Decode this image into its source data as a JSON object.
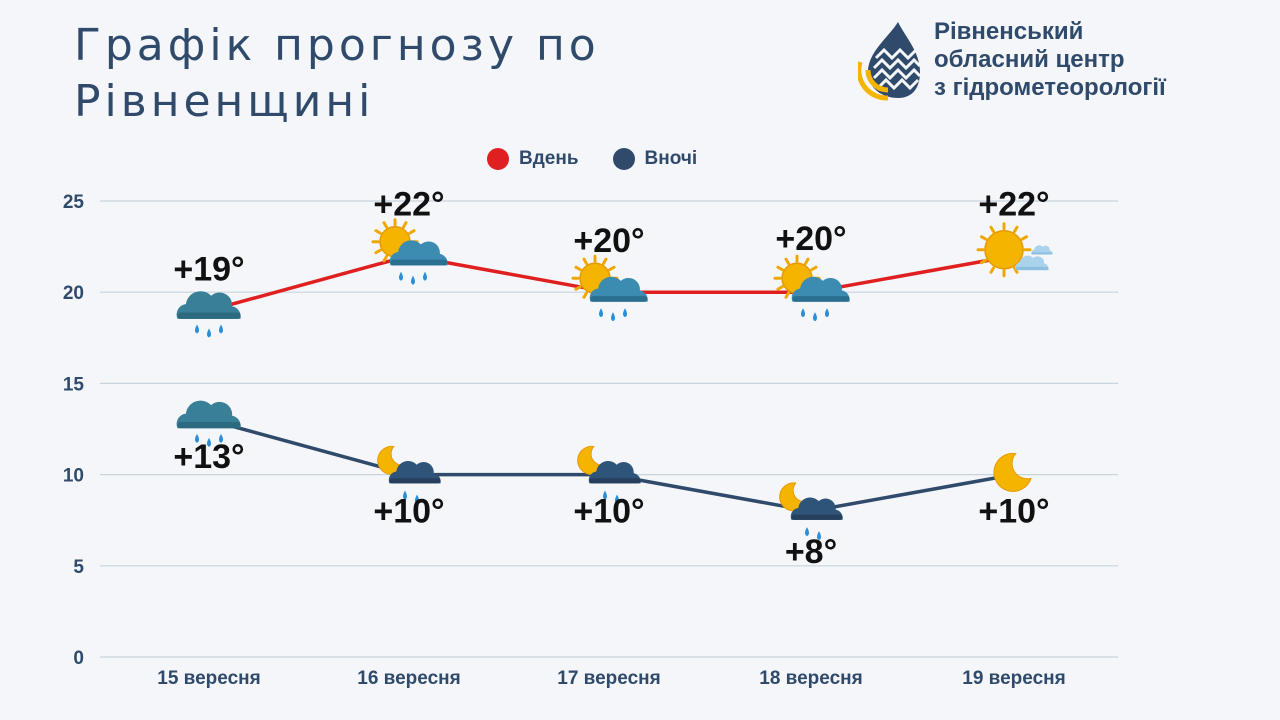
{
  "header": {
    "title_line1": "Графік прогнозу по",
    "title_line2": "Рівненщині",
    "org_line1": "Рівненський",
    "org_line2": "обласний центр",
    "org_line3": "з гідрометеорології",
    "logo_icon": "water-drop-logo-icon"
  },
  "colors": {
    "day": "#e02020",
    "night": "#2f4a6b",
    "grid": "#c9d3de",
    "text": "#2f4a6b",
    "sun": "#f5b400",
    "cloud": "#3c8bb0"
  },
  "chart_data": {
    "type": "line",
    "categories": [
      "15 вересня",
      "16 вересня",
      "17 вересня",
      "18 вересня",
      "19 вересня"
    ],
    "ylim": [
      0,
      25
    ],
    "yticks": [
      0,
      5,
      10,
      15,
      20,
      25
    ],
    "grid": true,
    "legend_position": "top-center",
    "series": [
      {
        "name": "Вдень",
        "color": "#e02020",
        "values": [
          19,
          22,
          20,
          20,
          22
        ],
        "labels": [
          "+19°",
          "+22°",
          "+20°",
          "+20°",
          "+22°"
        ],
        "icons": [
          "rain-cloud-icon",
          "sun-cloud-rain-icon",
          "sun-cloud-rain-icon",
          "sun-cloud-rain-icon",
          "sun-cloud-icon"
        ]
      },
      {
        "name": "Вночі",
        "color": "#2f4a6b",
        "values": [
          13,
          10,
          10,
          8,
          10
        ],
        "labels": [
          "+13°",
          "+10°",
          "+10°",
          "+8°",
          "+10°"
        ],
        "icons": [
          "rain-cloud-icon",
          "moon-cloud-rain-icon",
          "moon-cloud-rain-icon",
          "moon-cloud-rain-icon",
          "moon-icon"
        ]
      }
    ]
  }
}
